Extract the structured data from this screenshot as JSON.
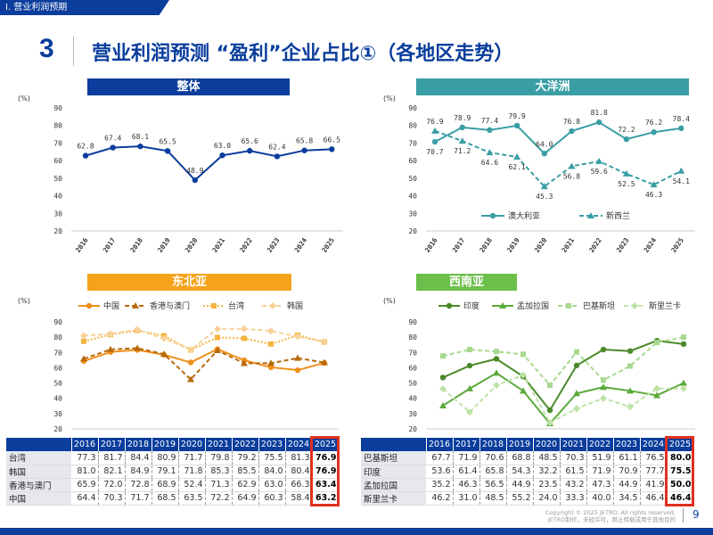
{
  "section": "Ⅰ. 营业利润预期",
  "slide_number": "3",
  "title": "营业利润预测 “盈利”企业占比①（各地区走势）",
  "copyright_line1": "Copyright © 2025 JETRO. All rights reserved.",
  "copyright_line2": "JETRO制作，未经许可，禁止转载或用于其他目的",
  "page": "9",
  "colors": {
    "brand": "#0a3d9c",
    "oceania": "#3a9ea5",
    "northeast_asia": "#f5a31a",
    "southwest_asia": "#6dbf4b",
    "highlight": "#e0301e"
  },
  "chart_data": [
    {
      "id": "overall",
      "type": "line",
      "title": "整体",
      "unit": "(%)",
      "categories": [
        "2016",
        "2017",
        "2018",
        "2019",
        "2020",
        "2021",
        "2022",
        "2023",
        "2024",
        "2025"
      ],
      "ylim": [
        20,
        90
      ],
      "yticks": [
        20,
        30,
        40,
        50,
        60,
        70,
        80,
        90
      ],
      "series": [
        {
          "values": [
            62.8,
            67.4,
            68.1,
            65.5,
            48.9,
            63.0,
            65.6,
            62.4,
            65.8,
            66.5
          ],
          "color": "#0a3d9c",
          "dash": "",
          "marker": "circle"
        }
      ]
    },
    {
      "id": "oceania",
      "type": "line",
      "title": "大洋洲",
      "unit": "(%)",
      "categories": [
        "2016",
        "2017",
        "2018",
        "2019",
        "2020",
        "2021",
        "2022",
        "2023",
        "2024",
        "2025"
      ],
      "ylim": [
        20,
        90
      ],
      "yticks": [
        20,
        30,
        40,
        50,
        60,
        70,
        80,
        90
      ],
      "series": [
        {
          "name": "澳大利亚",
          "values": [
            70.7,
            78.9,
            77.4,
            79.9,
            64.0,
            76.8,
            81.8,
            72.2,
            76.2,
            78.4
          ],
          "color": "#3a9ea5",
          "dash": "",
          "marker": "circle"
        },
        {
          "name": "新西兰",
          "values": [
            76.9,
            71.2,
            64.6,
            62.1,
            45.3,
            56.8,
            59.6,
            52.5,
            46.3,
            54.1
          ],
          "color": "#3a9ea5",
          "dash": "5,3",
          "marker": "triangle"
        }
      ]
    },
    {
      "id": "northeast_asia",
      "type": "line",
      "title": "东北亚",
      "unit": "(%)",
      "categories": [
        "2016",
        "2017",
        "2018",
        "2019",
        "2020",
        "2021",
        "2022",
        "2023",
        "2024",
        "2025"
      ],
      "ylim": [
        20,
        90
      ],
      "yticks": [
        20,
        30,
        40,
        50,
        60,
        70,
        80,
        90
      ],
      "series": [
        {
          "name": "中国",
          "values": [
            64.4,
            70.3,
            71.7,
            68.5,
            63.5,
            72.2,
            64.9,
            60.3,
            58.4,
            63.2
          ],
          "color": "#f0901a",
          "dash": "",
          "marker": "circle"
        },
        {
          "name": "香港与澳门",
          "values": [
            65.9,
            72.0,
            72.8,
            68.9,
            52.4,
            71.3,
            62.9,
            63.0,
            66.3,
            63.4
          ],
          "color": "#b86a0c",
          "dash": "5,3",
          "marker": "triangle"
        },
        {
          "name": "台湾",
          "values": [
            77.3,
            81.7,
            84.4,
            80.9,
            71.7,
            79.8,
            79.2,
            75.5,
            81.3,
            76.9
          ],
          "color": "#f5b340",
          "dash": "2,2",
          "marker": "square"
        },
        {
          "name": "韩国",
          "values": [
            81.0,
            82.1,
            84.9,
            79.1,
            71.8,
            85.3,
            85.5,
            84.0,
            80.4,
            76.9
          ],
          "color": "#f8d29a",
          "dash": "5,3",
          "marker": "diamond"
        }
      ]
    },
    {
      "id": "southwest_asia",
      "type": "line",
      "title": "西南亚",
      "unit": "(%)",
      "categories": [
        "2016",
        "2017",
        "2018",
        "2019",
        "2020",
        "2021",
        "2022",
        "2023",
        "2024",
        "2025"
      ],
      "ylim": [
        20,
        90
      ],
      "yticks": [
        20,
        30,
        40,
        50,
        60,
        70,
        80,
        90
      ],
      "series": [
        {
          "name": "印度",
          "values": [
            53.6,
            61.4,
            65.8,
            54.3,
            32.2,
            61.5,
            71.9,
            70.9,
            77.7,
            75.5
          ],
          "color": "#4a8a2a",
          "dash": "",
          "marker": "circle"
        },
        {
          "name": "孟加拉国",
          "values": [
            35.2,
            46.3,
            56.5,
            44.9,
            23.5,
            43.2,
            47.3,
            44.9,
            41.9,
            50.0
          ],
          "color": "#5aaa3a",
          "dash": "",
          "marker": "triangle"
        },
        {
          "name": "巴基斯坦",
          "values": [
            67.7,
            71.9,
            70.6,
            68.8,
            48.5,
            70.3,
            51.9,
            61.1,
            76.5,
            80.0
          ],
          "color": "#a8d890",
          "dash": "5,3",
          "marker": "square"
        },
        {
          "name": "斯里兰卡",
          "values": [
            46.2,
            31.0,
            48.5,
            55.2,
            24.0,
            33.3,
            40.0,
            34.5,
            46.4,
            46.4
          ],
          "color": "#bfe3a8",
          "dash": "5,3",
          "marker": "diamond"
        }
      ]
    }
  ]
}
